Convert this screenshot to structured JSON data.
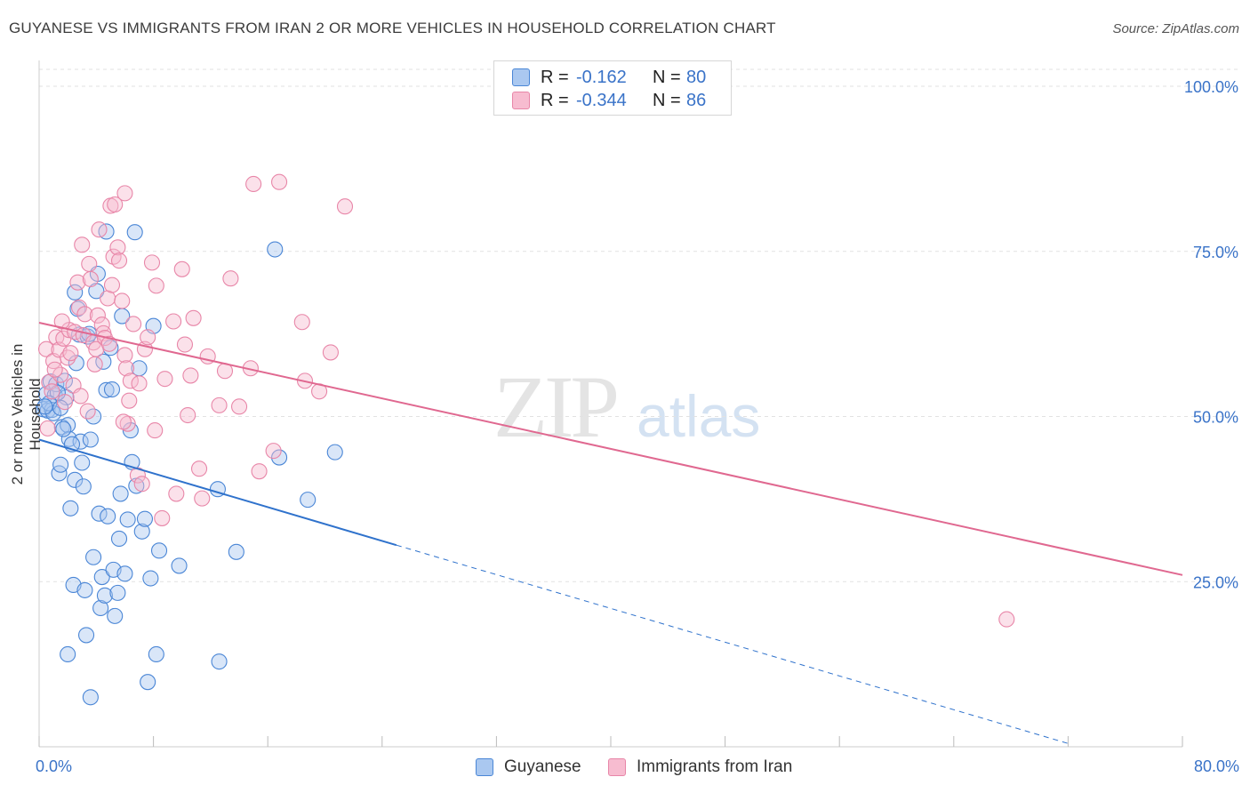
{
  "header": {
    "title": "GUYANESE VS IMMIGRANTS FROM IRAN 2 OR MORE VEHICLES IN HOUSEHOLD CORRELATION CHART",
    "source": "Source: ZipAtlas.com"
  },
  "watermark": {
    "zip": "ZIP",
    "atlas": "atlas"
  },
  "legend_top": {
    "rows": [
      {
        "r_label": "R =",
        "r_value": "-0.162",
        "n_label": "N =",
        "n_value": "80"
      },
      {
        "r_label": "R =",
        "r_value": "-0.344",
        "n_label": "N =",
        "n_value": "86"
      }
    ]
  },
  "legend_bottom": {
    "items": [
      "Guyanese",
      "Immigrants from Iran"
    ]
  },
  "colors": {
    "series1_fill": "#aac8f0",
    "series1_stroke": "#4a86d6",
    "series1_line": "#2f72cc",
    "series2_fill": "#f7bcd0",
    "series2_stroke": "#e886a8",
    "series2_line": "#e06890",
    "tick_label": "#3a73c8",
    "grid": "#e2e2e2"
  },
  "chart_data": {
    "type": "scatter",
    "title": "GUYANESE VS IMMIGRANTS FROM IRAN 2 OR MORE VEHICLES IN HOUSEHOLD CORRELATION CHART",
    "xlabel": "",
    "ylabel": "2 or more Vehicles in Household",
    "xlim": [
      0,
      80
    ],
    "ylim": [
      0,
      100
    ],
    "x_tick_labels": [
      "0.0%",
      "80.0%"
    ],
    "y_ticks": [
      25,
      50,
      75,
      100
    ],
    "y_tick_labels": [
      "25.0%",
      "50.0%",
      "75.0%",
      "100.0%"
    ],
    "grid": true,
    "legend_position": "top-center",
    "series": [
      {
        "name": "Guyanese",
        "r": -0.162,
        "n": 80,
        "trend": {
          "x0": 0,
          "y0": 46.5,
          "x_solid_end": 25,
          "x1": 72,
          "y1": 0.5
        },
        "points": [
          [
            0.3,
            51.1
          ],
          [
            0.5,
            53.4
          ],
          [
            0.6,
            50.9
          ],
          [
            0.8,
            55.3
          ],
          [
            0.9,
            51.0
          ],
          [
            1.1,
            53.2
          ],
          [
            1.2,
            54.9
          ],
          [
            1.4,
            41.4
          ],
          [
            1.5,
            42.7
          ],
          [
            1.6,
            48.4
          ],
          [
            1.8,
            55.4
          ],
          [
            1.9,
            52.9
          ],
          [
            2.0,
            48.7
          ],
          [
            2.0,
            14.0
          ],
          [
            2.1,
            46.6
          ],
          [
            2.2,
            36.1
          ],
          [
            2.4,
            24.5
          ],
          [
            2.5,
            40.4
          ],
          [
            2.5,
            68.8
          ],
          [
            2.7,
            66.3
          ],
          [
            2.8,
            62.4
          ],
          [
            2.9,
            46.2
          ],
          [
            3.0,
            43.0
          ],
          [
            3.1,
            39.4
          ],
          [
            3.2,
            23.7
          ],
          [
            3.3,
            16.9
          ],
          [
            3.4,
            62.1
          ],
          [
            3.6,
            7.5
          ],
          [
            3.6,
            46.5
          ],
          [
            3.8,
            50.0
          ],
          [
            3.8,
            28.7
          ],
          [
            4.0,
            69.0
          ],
          [
            4.1,
            71.6
          ],
          [
            4.2,
            35.3
          ],
          [
            4.3,
            21.0
          ],
          [
            4.4,
            25.7
          ],
          [
            4.6,
            22.9
          ],
          [
            4.7,
            78.0
          ],
          [
            4.7,
            54.0
          ],
          [
            4.8,
            34.9
          ],
          [
            5.0,
            60.4
          ],
          [
            5.2,
            26.8
          ],
          [
            5.3,
            19.8
          ],
          [
            5.5,
            23.3
          ],
          [
            5.6,
            31.5
          ],
          [
            5.7,
            38.3
          ],
          [
            5.8,
            65.2
          ],
          [
            6.0,
            26.2
          ],
          [
            6.2,
            34.4
          ],
          [
            6.4,
            47.9
          ],
          [
            6.5,
            43.1
          ],
          [
            6.7,
            77.9
          ],
          [
            6.8,
            39.5
          ],
          [
            7.0,
            57.3
          ],
          [
            7.2,
            32.6
          ],
          [
            7.4,
            34.5
          ],
          [
            7.6,
            9.8
          ],
          [
            7.8,
            25.5
          ],
          [
            8.0,
            63.7
          ],
          [
            8.2,
            14.0
          ],
          [
            8.4,
            29.7
          ],
          [
            9.8,
            27.4
          ],
          [
            12.5,
            39.0
          ],
          [
            12.6,
            12.9
          ],
          [
            13.8,
            29.5
          ],
          [
            16.5,
            75.3
          ],
          [
            16.8,
            43.8
          ],
          [
            18.8,
            37.4
          ],
          [
            20.7,
            44.6
          ],
          [
            1.0,
            50.5
          ],
          [
            1.3,
            53.6
          ],
          [
            1.7,
            48.1
          ],
          [
            2.3,
            45.8
          ],
          [
            3.5,
            62.5
          ],
          [
            4.5,
            58.3
          ],
          [
            5.1,
            54.1
          ],
          [
            0.7,
            52.0
          ],
          [
            0.4,
            51.5
          ],
          [
            2.6,
            58.1
          ],
          [
            1.5,
            51.3
          ]
        ]
      },
      {
        "name": "Immigrants from Iran",
        "r": -0.344,
        "n": 86,
        "trend": {
          "x0": 0,
          "y0": 64.2,
          "x1": 80,
          "y1": 26.0
        },
        "points": [
          [
            0.5,
            60.2
          ],
          [
            0.7,
            55.2
          ],
          [
            0.9,
            53.8
          ],
          [
            1.0,
            58.4
          ],
          [
            1.2,
            62.0
          ],
          [
            1.4,
            60.1
          ],
          [
            1.5,
            56.3
          ],
          [
            1.7,
            61.8
          ],
          [
            1.8,
            52.2
          ],
          [
            2.0,
            58.9
          ],
          [
            2.1,
            63.1
          ],
          [
            2.2,
            59.6
          ],
          [
            2.4,
            54.7
          ],
          [
            2.5,
            62.8
          ],
          [
            2.7,
            70.3
          ],
          [
            2.8,
            66.5
          ],
          [
            3.0,
            76.0
          ],
          [
            3.1,
            62.3
          ],
          [
            3.2,
            65.5
          ],
          [
            3.4,
            50.8
          ],
          [
            3.5,
            73.1
          ],
          [
            3.6,
            70.8
          ],
          [
            3.8,
            61.2
          ],
          [
            4.0,
            60.2
          ],
          [
            4.1,
            65.3
          ],
          [
            4.2,
            78.3
          ],
          [
            4.4,
            63.9
          ],
          [
            4.5,
            62.6
          ],
          [
            4.6,
            61.9
          ],
          [
            4.8,
            67.9
          ],
          [
            5.0,
            81.9
          ],
          [
            5.1,
            69.9
          ],
          [
            5.2,
            74.2
          ],
          [
            5.3,
            82.1
          ],
          [
            5.5,
            75.6
          ],
          [
            5.6,
            73.6
          ],
          [
            5.8,
            67.5
          ],
          [
            6.0,
            59.3
          ],
          [
            6.0,
            83.8
          ],
          [
            6.1,
            57.3
          ],
          [
            6.2,
            48.9
          ],
          [
            6.3,
            52.4
          ],
          [
            6.4,
            55.4
          ],
          [
            6.6,
            64.0
          ],
          [
            6.9,
            41.1
          ],
          [
            7.0,
            55.0
          ],
          [
            7.2,
            39.8
          ],
          [
            7.4,
            60.2
          ],
          [
            7.6,
            62.0
          ],
          [
            7.9,
            73.3
          ],
          [
            8.1,
            47.9
          ],
          [
            8.2,
            69.8
          ],
          [
            8.6,
            34.6
          ],
          [
            8.8,
            55.7
          ],
          [
            9.4,
            64.4
          ],
          [
            9.6,
            38.3
          ],
          [
            10.0,
            72.3
          ],
          [
            10.2,
            60.9
          ],
          [
            10.4,
            50.2
          ],
          [
            10.6,
            56.2
          ],
          [
            10.8,
            64.9
          ],
          [
            11.2,
            42.1
          ],
          [
            11.4,
            37.6
          ],
          [
            11.8,
            59.1
          ],
          [
            12.6,
            51.7
          ],
          [
            13.0,
            56.9
          ],
          [
            13.4,
            70.9
          ],
          [
            14.0,
            51.5
          ],
          [
            14.8,
            57.3
          ],
          [
            15.0,
            85.2
          ],
          [
            15.4,
            41.7
          ],
          [
            16.4,
            44.8
          ],
          [
            16.8,
            85.5
          ],
          [
            18.4,
            64.3
          ],
          [
            18.6,
            55.4
          ],
          [
            19.6,
            53.8
          ],
          [
            20.4,
            59.7
          ],
          [
            21.4,
            81.8
          ],
          [
            0.6,
            48.2
          ],
          [
            1.1,
            57.1
          ],
          [
            1.6,
            64.4
          ],
          [
            2.9,
            53.1
          ],
          [
            3.9,
            57.9
          ],
          [
            4.9,
            61.0
          ],
          [
            5.9,
            49.2
          ],
          [
            67.7,
            19.3
          ]
        ]
      }
    ]
  }
}
